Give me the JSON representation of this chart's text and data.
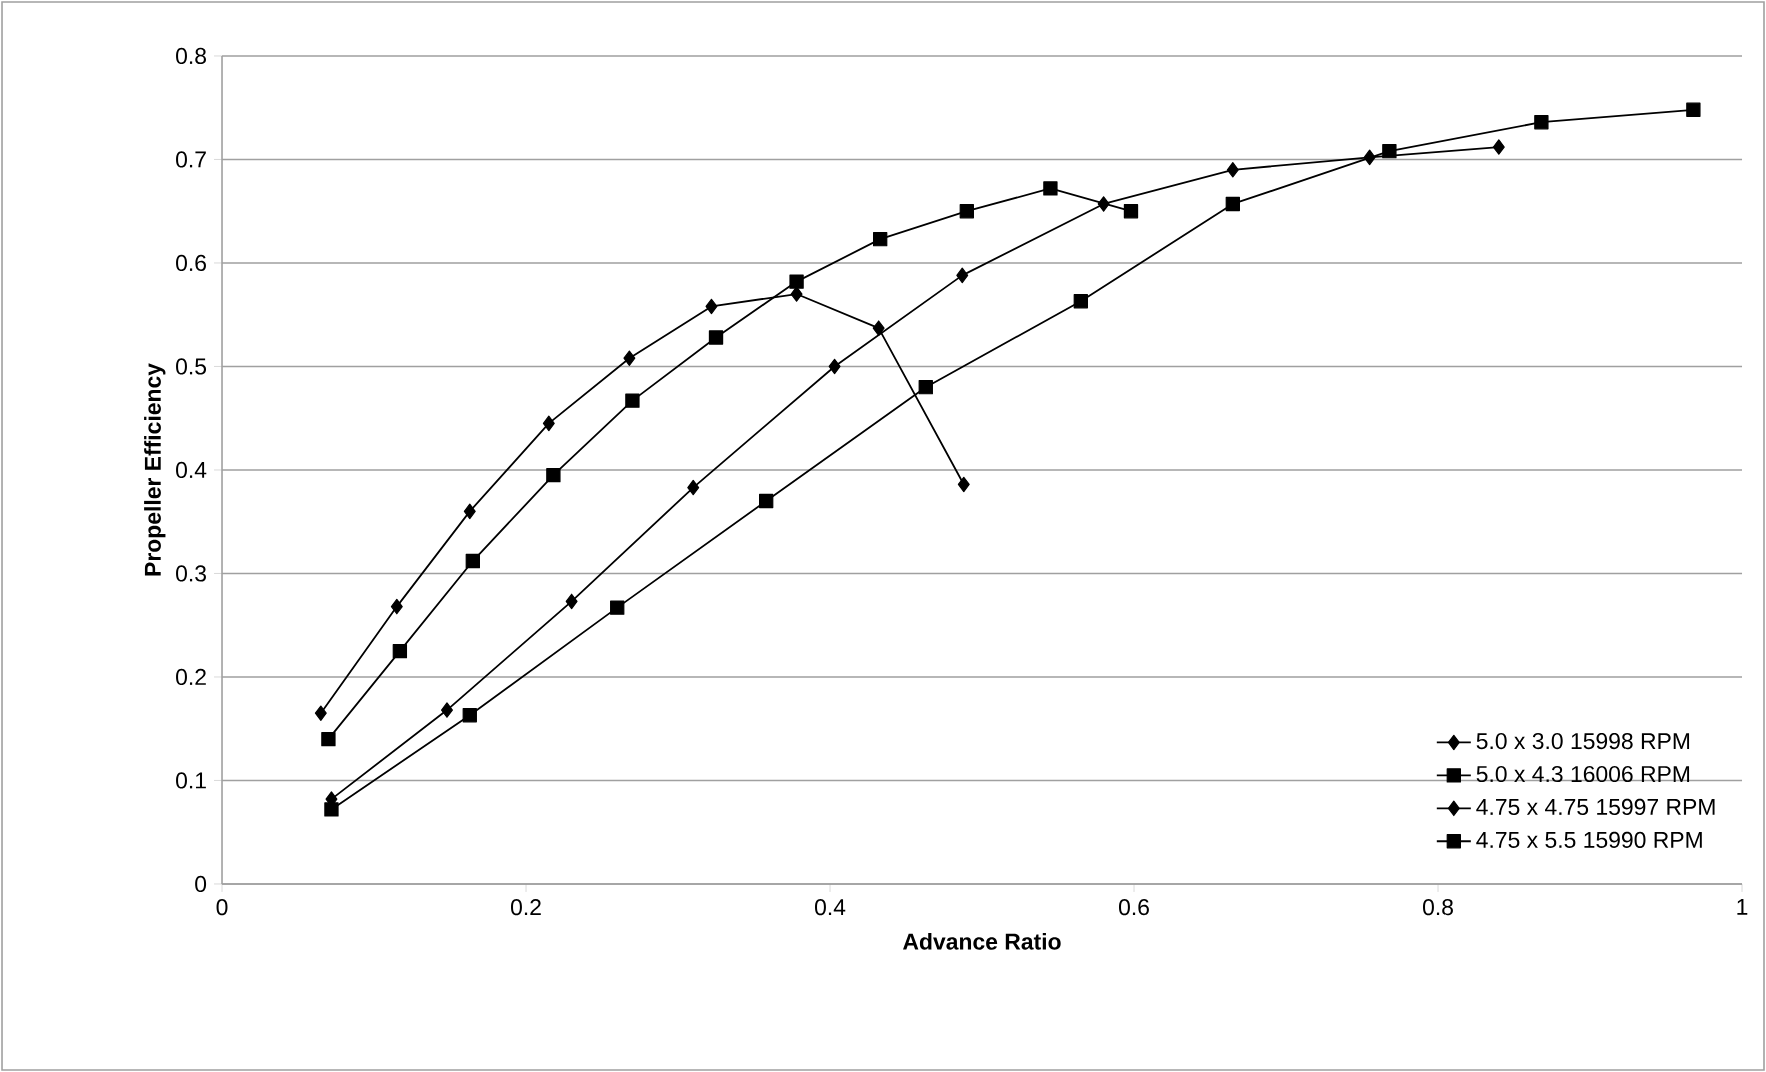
{
  "chart_data": {
    "type": "line",
    "xlabel": "Advance Ratio",
    "ylabel": "Propeller Efficiency",
    "xlim": [
      0,
      1
    ],
    "xticks": [
      0,
      0.2,
      0.4,
      0.6,
      0.8,
      1
    ],
    "ylim": [
      0,
      0.8
    ],
    "yticks": [
      0,
      0.1,
      0.2,
      0.3,
      0.4,
      0.5,
      0.6,
      0.7,
      0.8
    ],
    "grid": "y",
    "legend": "bottom right",
    "line_style": "solid",
    "series": [
      {
        "name": "5.0 x 3.0 15998 RPM",
        "color": "#000000",
        "marker": "diamond",
        "x": [
          0.065,
          0.115,
          0.163,
          0.215,
          0.268,
          0.322,
          0.378,
          0.432,
          0.488
        ],
        "values": [
          0.165,
          0.268,
          0.36,
          0.445,
          0.508,
          0.558,
          0.57,
          0.537,
          0.386
        ]
      },
      {
        "name": "5.0 x 4.3 16006 RPM",
        "color": "#000000",
        "marker": "square",
        "x": [
          0.07,
          0.117,
          0.165,
          0.218,
          0.27,
          0.325,
          0.378,
          0.433,
          0.49,
          0.545,
          0.598
        ],
        "values": [
          0.14,
          0.225,
          0.312,
          0.395,
          0.467,
          0.528,
          0.582,
          0.623,
          0.65,
          0.672,
          0.65
        ]
      },
      {
        "name": "4.75 x 4.75 15997 RPM",
        "color": "#000000",
        "marker": "diamond",
        "x": [
          0.072,
          0.148,
          0.23,
          0.31,
          0.403,
          0.487,
          0.58,
          0.665,
          0.755,
          0.84
        ],
        "values": [
          0.082,
          0.168,
          0.273,
          0.383,
          0.5,
          0.588,
          0.657,
          0.69,
          0.702,
          0.712
        ]
      },
      {
        "name": "4.75 x 5.5 15990 RPM",
        "color": "#000000",
        "marker": "square",
        "x": [
          0.072,
          0.163,
          0.26,
          0.358,
          0.463,
          0.565,
          0.665,
          0.768,
          0.868,
          0.968
        ],
        "values": [
          0.072,
          0.163,
          0.267,
          0.37,
          0.48,
          0.563,
          0.657,
          0.708,
          0.736,
          0.748
        ]
      }
    ]
  }
}
